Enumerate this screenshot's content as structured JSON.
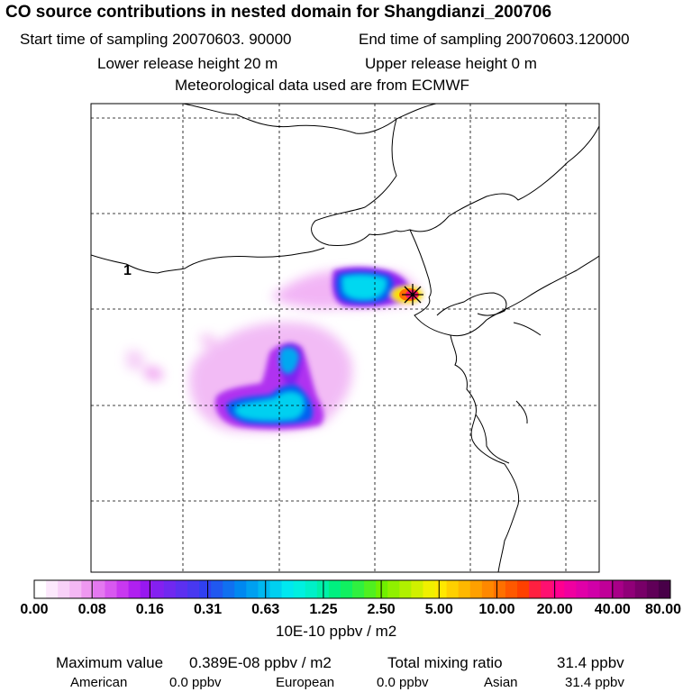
{
  "header": {
    "title": "CO  source contributions in nested domain for Shangdianzi_200706",
    "start_time": "Start time of sampling 20070603. 90000",
    "end_time": "End time of sampling 20070603.120000",
    "lower_release": "Lower release height   20 m",
    "upper_release": "Upper release height    0 m",
    "met_data": "Meteorological data used are from ECMWF"
  },
  "map": {
    "marker_label": "1",
    "station_marker": "star-icon"
  },
  "colorbar": {
    "labels": [
      "0.00",
      "0.08",
      "0.16",
      "0.31",
      "0.63",
      "1.25",
      "2.50",
      "5.00",
      "10.00",
      "20.00",
      "40.00",
      "80.00"
    ],
    "unit": "10E-10 ppbv / m2",
    "colors": [
      "#ffffff",
      "#fce8fc",
      "#f8d0f8",
      "#f4b8f4",
      "#ee98f0",
      "#e478f0",
      "#d858f0",
      "#c838f0",
      "#b020f0",
      "#9818f0",
      "#8420f0",
      "#7028f0",
      "#5c30f0",
      "#4838f0",
      "#3040f0",
      "#2058f0",
      "#1070f0",
      "#0088f0",
      "#00a0f0",
      "#00b8f0",
      "#00d0f0",
      "#00e8f0",
      "#00f0e0",
      "#00f0c8",
      "#00f0a8",
      "#00f080",
      "#10f060",
      "#30f040",
      "#50f020",
      "#70f000",
      "#90f000",
      "#b0f000",
      "#d0f000",
      "#f0f000",
      "#ffe800",
      "#ffd000",
      "#ffb800",
      "#ffa000",
      "#ff8800",
      "#ff7000",
      "#ff5800",
      "#ff4000",
      "#ff2040",
      "#ff1070",
      "#ff0090",
      "#f000a0",
      "#e000a8",
      "#d000a8",
      "#c00098",
      "#a80088",
      "#900078",
      "#780068",
      "#600058",
      "#480048"
    ]
  },
  "stats": {
    "max_label": "Maximum value",
    "max_value": "0.389E-08 ppbv / m2",
    "mix_label": "Total mixing ratio",
    "mix_value": "31.4 ppbv",
    "american_label": "American",
    "american_value": "0.0 ppbv",
    "european_label": "European",
    "european_value": "0.0 ppbv",
    "asian_label": "Asian",
    "asian_value": "31.4 ppbv"
  }
}
